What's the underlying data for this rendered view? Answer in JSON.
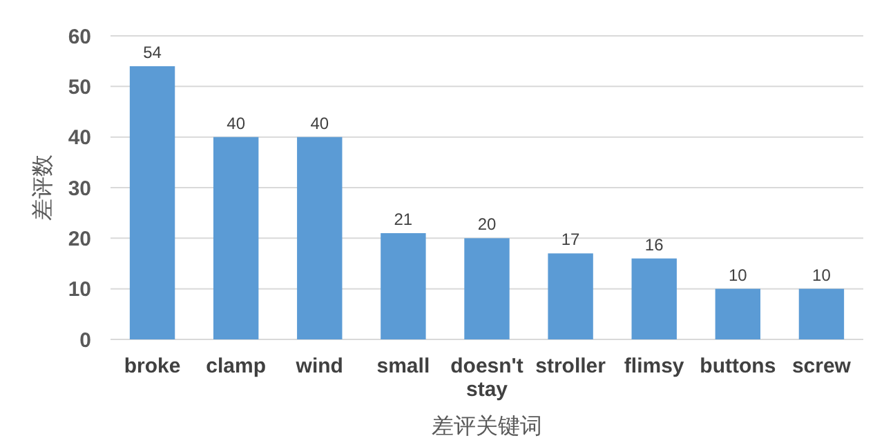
{
  "chart_data": {
    "type": "bar",
    "xlabel": "差评关键词",
    "ylabel": "差评数",
    "categories": [
      "broke",
      "clamp",
      "wind",
      "small",
      "doesn't stay",
      "stroller",
      "flimsy",
      "buttons",
      "screw"
    ],
    "values": [
      54,
      40,
      40,
      21,
      20,
      17,
      16,
      10,
      10
    ],
    "color": "#5b9bd5",
    "ylim": [
      0,
      60
    ],
    "yticks": [
      0,
      10,
      20,
      30,
      40,
      50,
      60
    ],
    "grid": "y",
    "data_labels": true
  }
}
